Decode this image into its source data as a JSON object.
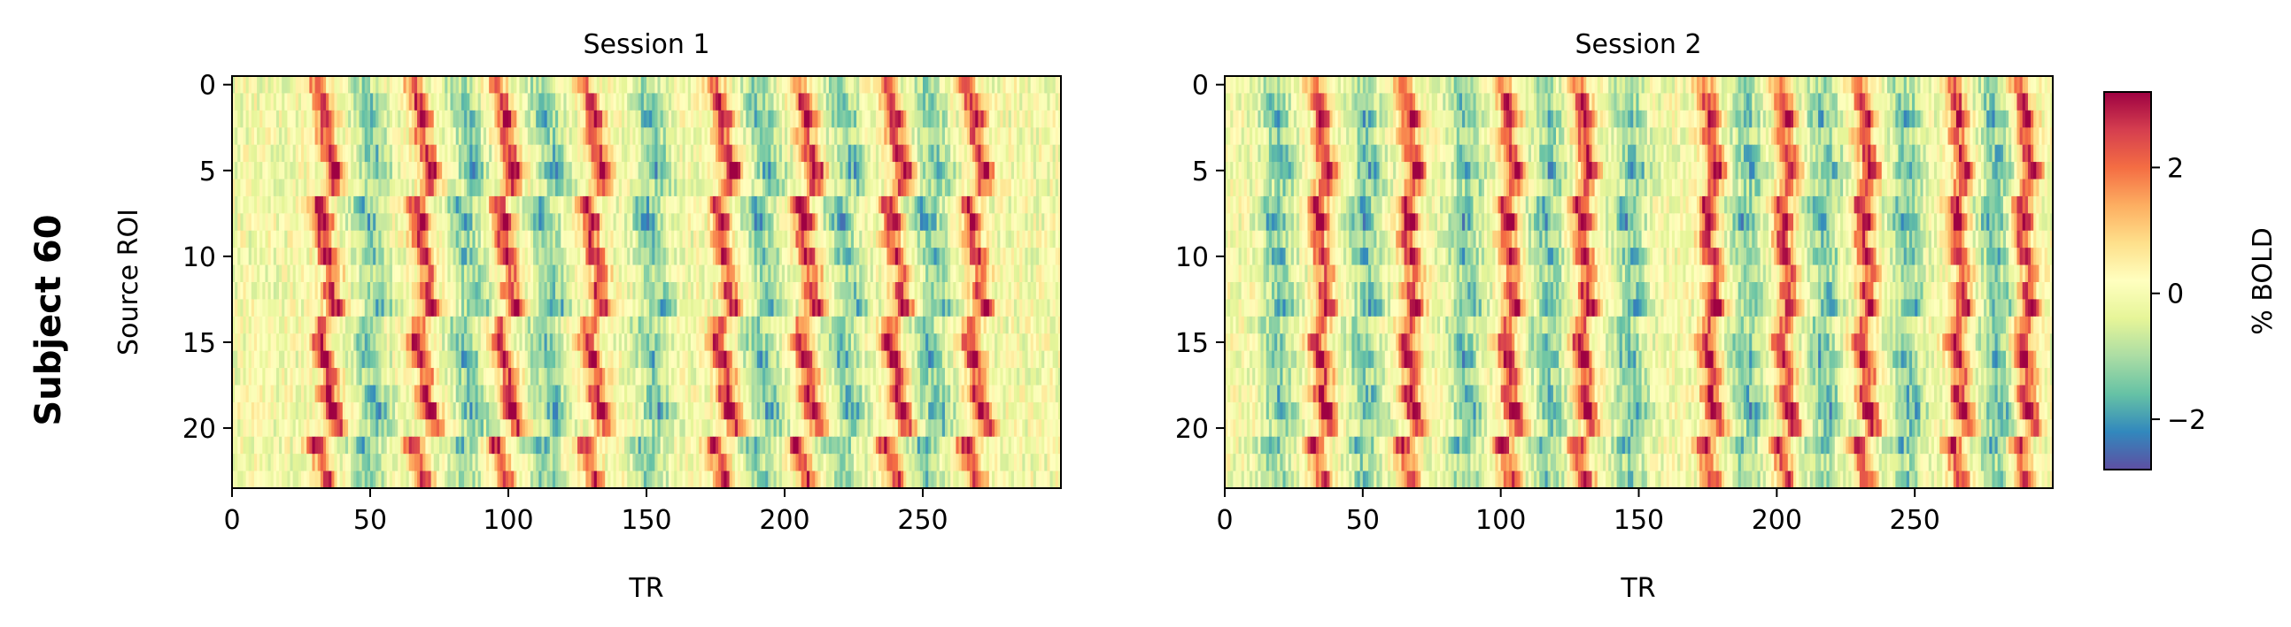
{
  "figure": {
    "row_label": "Subject 60",
    "colorbar_label": "% BOLD"
  },
  "chart_data": [
    {
      "type": "heatmap",
      "title": "Session 1",
      "xlabel": "TR",
      "ylabel": "Source ROI",
      "n_cols": 300,
      "n_rows": 24,
      "xlim": [
        0,
        299
      ],
      "ylim": [
        23.5,
        -0.5
      ],
      "xticks": [
        0,
        50,
        100,
        150,
        200,
        250
      ],
      "yticks": [
        0,
        5,
        10,
        15,
        20
      ],
      "peak_trs": [
        33,
        68,
        98,
        130,
        177,
        207,
        239,
        268
      ],
      "trough_trs": [
        50,
        85,
        114,
        152,
        192,
        222,
        253
      ],
      "shift_per_roi": 0.25
    },
    {
      "type": "heatmap",
      "title": "Session 2",
      "xlabel": "TR",
      "ylabel": "",
      "n_cols": 300,
      "n_rows": 24,
      "xlim": [
        0,
        299
      ],
      "ylim": [
        23.5,
        -0.5
      ],
      "xticks": [
        0,
        50,
        100,
        150,
        200,
        250
      ],
      "yticks": [
        0,
        5,
        10,
        15,
        20
      ],
      "peak_trs": [
        35,
        67,
        103,
        130,
        176,
        203,
        232,
        266,
        290
      ],
      "trough_trs": [
        20,
        52,
        88,
        118,
        148,
        190,
        218,
        248,
        280
      ],
      "shift_per_roi": 0.15
    }
  ],
  "colorbar": {
    "colormap": "Spectral_r",
    "vmin": -2.8,
    "vmax": 3.2,
    "ticks": [
      -2,
      0,
      2
    ],
    "tick_labels": [
      "−2",
      "0",
      "2"
    ],
    "colors": [
      "#5e4fa2",
      "#3288bd",
      "#66c2a5",
      "#abdda4",
      "#e6f598",
      "#ffffbf",
      "#fee08b",
      "#fdae61",
      "#f46d43",
      "#d53e4f",
      "#9e0142"
    ]
  }
}
